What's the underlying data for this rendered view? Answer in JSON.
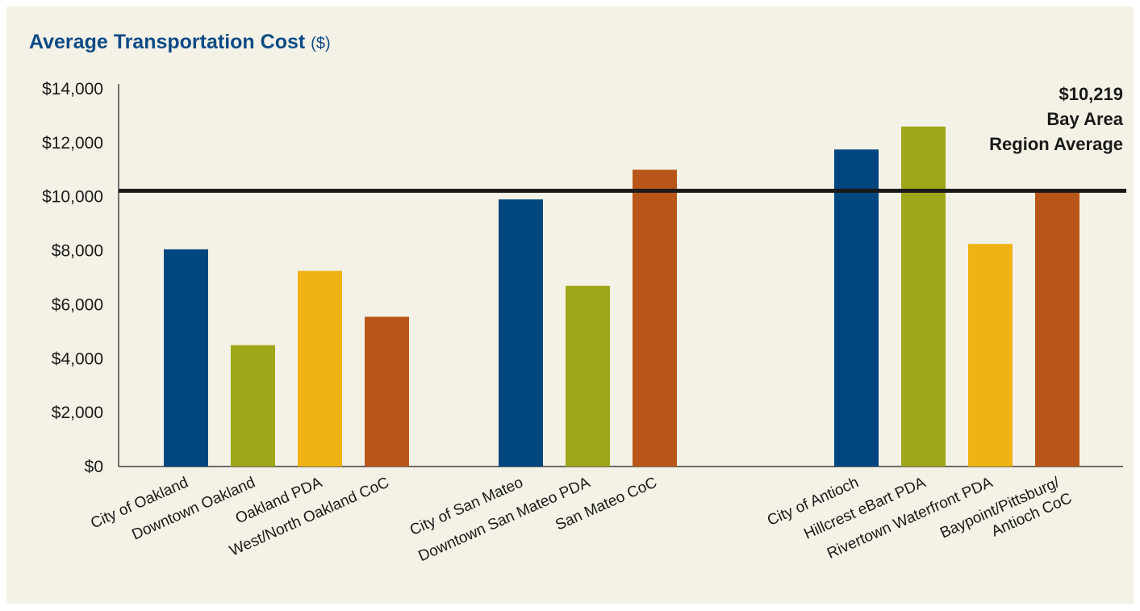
{
  "chart_data": {
    "type": "bar",
    "title": "Average Transportation Cost",
    "title_unit": "($)",
    "xlabel": "",
    "ylabel": "",
    "ylim": [
      0,
      14000
    ],
    "yticks": [
      0,
      2000,
      4000,
      6000,
      8000,
      10000,
      12000,
      14000
    ],
    "ytick_labels": [
      "$0",
      "$2,000",
      "$4,000",
      "$6,000",
      "$8,000",
      "$10,000",
      "$12,000",
      "$14,000"
    ],
    "grid": false,
    "legend": "none",
    "groups": [
      {
        "bars": [
          {
            "label": [
              "City of Oakland"
            ],
            "value": 8050,
            "color": "#00467f"
          },
          {
            "label": [
              "Downtown Oakland"
            ],
            "value": 4500,
            "color": "#9ea719"
          },
          {
            "label": [
              "Oakland PDA"
            ],
            "value": 7250,
            "color": "#efb213"
          },
          {
            "label": [
              "West/North Oakland CoC"
            ],
            "value": 5550,
            "color": "#b85619"
          }
        ]
      },
      {
        "bars": [
          {
            "label": [
              "City of San Mateo"
            ],
            "value": 9900,
            "color": "#00467f"
          },
          {
            "label": [
              "Downtown San Mateo PDA"
            ],
            "value": 6700,
            "color": "#9ea719"
          },
          {
            "label": [
              "San Mateo CoC"
            ],
            "value": 11000,
            "color": "#b85619"
          }
        ]
      },
      {
        "bars": [
          {
            "label": [
              "City of Antioch"
            ],
            "value": 11750,
            "color": "#00467f"
          },
          {
            "label": [
              "Hillcrest eBart PDA"
            ],
            "value": 12600,
            "color": "#9ea719"
          },
          {
            "label": [
              "Rivertown Waterfront PDA"
            ],
            "value": 8250,
            "color": "#efb213"
          },
          {
            "label": [
              "Baypoint/Pittsburg/",
              "Antioch CoC"
            ],
            "value": 10250,
            "color": "#b85619"
          }
        ]
      }
    ],
    "reference_line": {
      "value": 10219,
      "label_lines": [
        "$10,219",
        "Bay Area",
        "Region Average"
      ],
      "color": "#1a1a1a"
    },
    "title_color": "#0e4b85",
    "text_color": "#1a1a1a"
  }
}
